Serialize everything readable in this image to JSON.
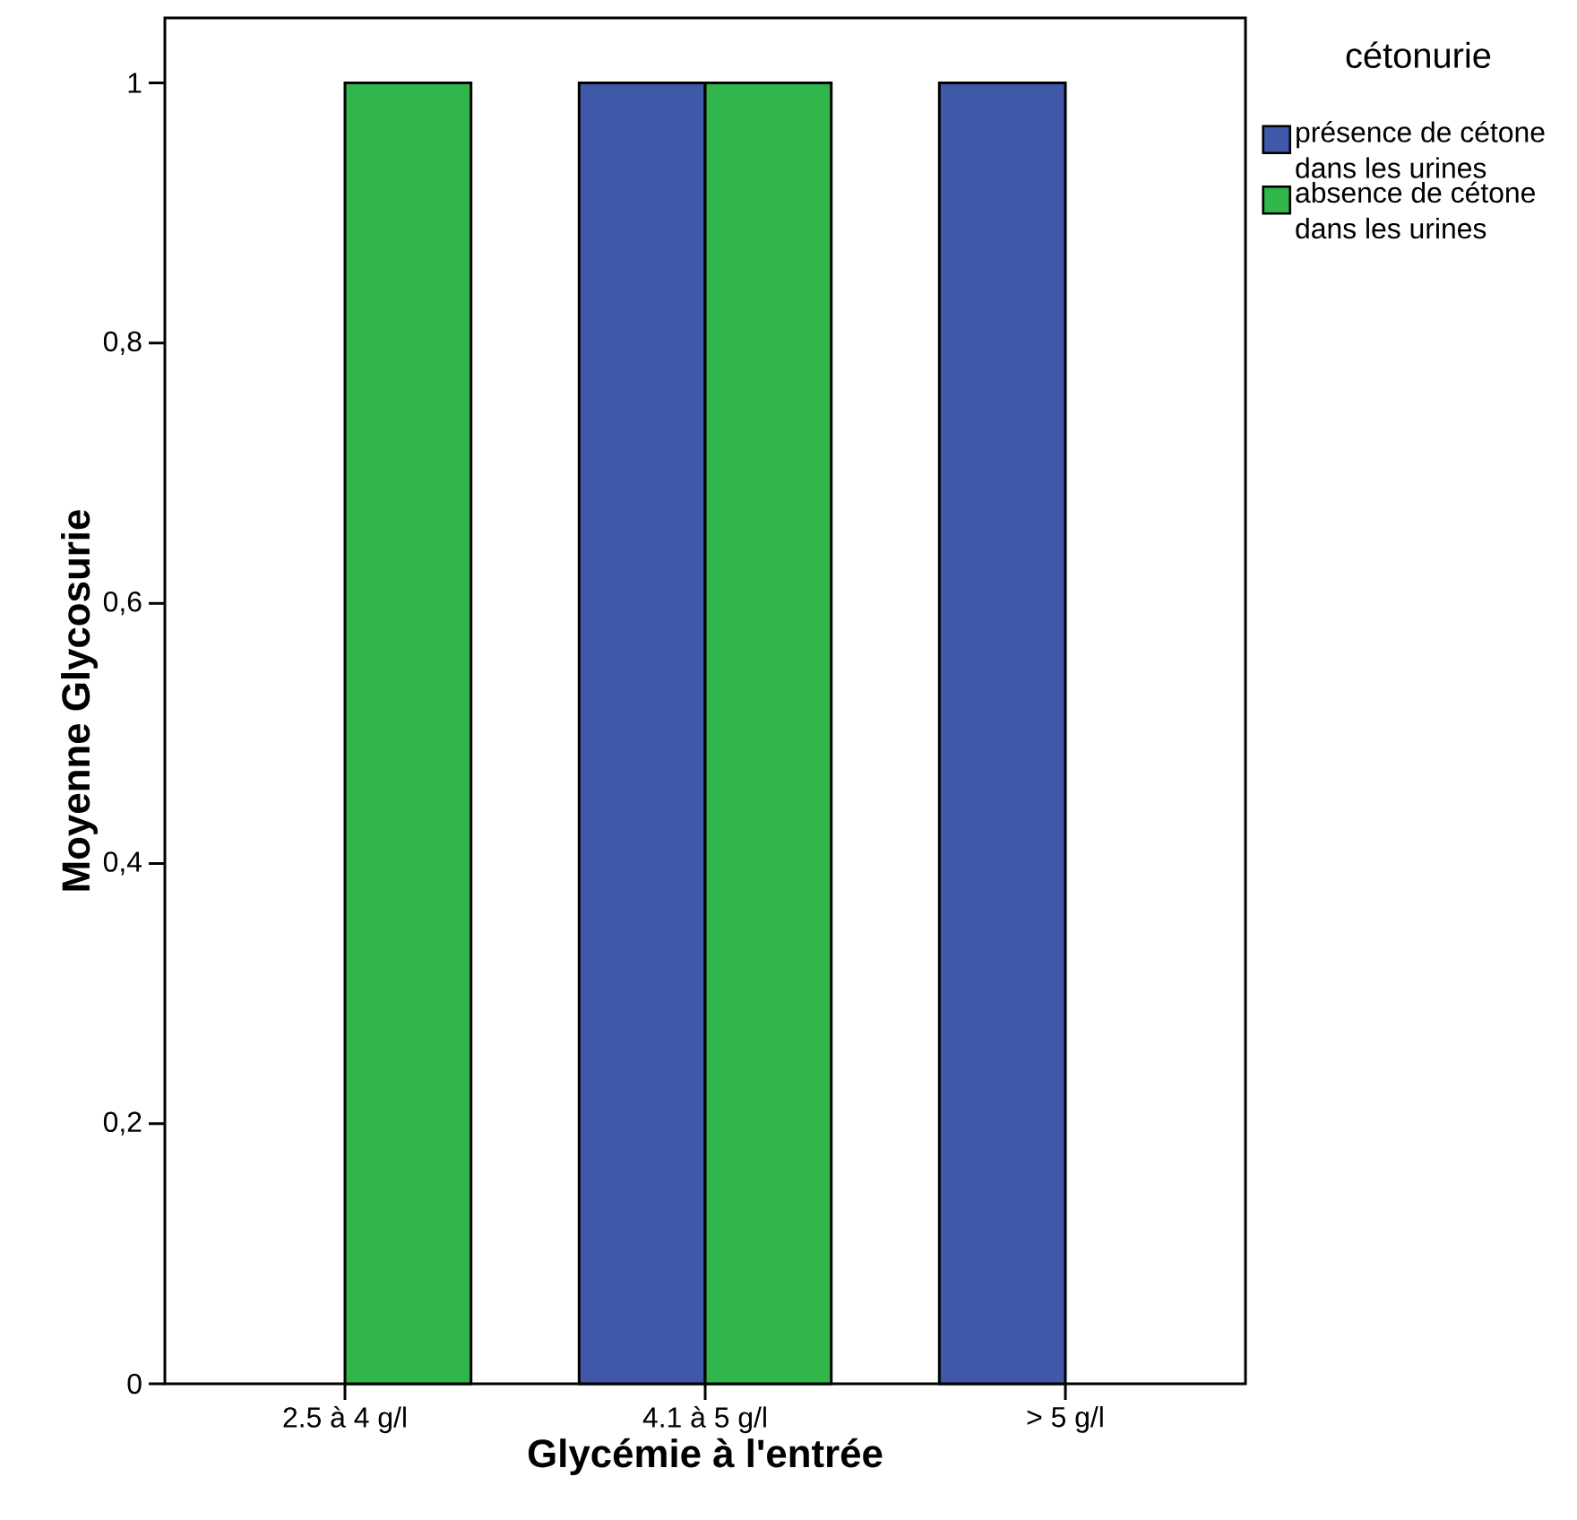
{
  "chart_data": {
    "type": "bar",
    "xlabel": "Glycémie à l'entrée",
    "ylabel": "Moyenne Glycosurie",
    "legend_title": "cétonurie",
    "legend": "right",
    "categories": [
      "2.5 à 4 g/l",
      "4.1 à 5 g/l",
      "> 5 g/l"
    ],
    "series": [
      {
        "name": "présence de cétone dans les urines",
        "color": "#3f58a8",
        "values": [
          null,
          1,
          1
        ]
      },
      {
        "name": "absence de cétone dans les urines",
        "color": "#30b64a",
        "values": [
          1,
          1,
          null
        ]
      }
    ],
    "ylim": [
      0,
      1.05
    ],
    "yticks": [
      0,
      {
        "value": 0.2,
        "label": "0,2"
      },
      {
        "value": 0.4,
        "label": "0,4"
      },
      {
        "value": 0.6,
        "label": "0,6"
      },
      {
        "value": 0.8,
        "label": "0,8"
      },
      1
    ]
  }
}
